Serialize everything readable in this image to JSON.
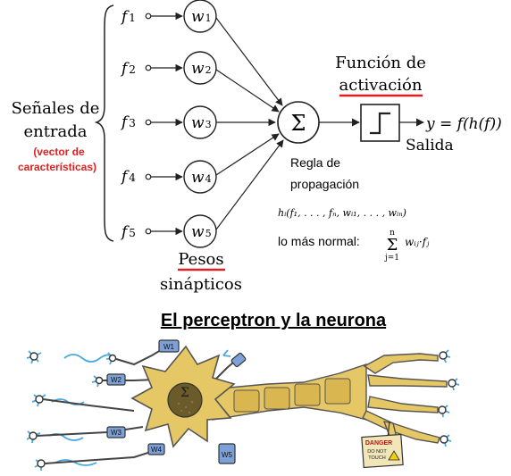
{
  "diagram": {
    "inputs": [
      {
        "label": "f",
        "sub": "1",
        "weight": "w",
        "weight_sub": "1"
      },
      {
        "label": "f",
        "sub": "2",
        "weight": "w",
        "weight_sub": "2"
      },
      {
        "label": "f",
        "sub": "3",
        "weight": "w",
        "weight_sub": "3"
      },
      {
        "label": "f",
        "sub": "4",
        "weight": "w",
        "weight_sub": "4"
      },
      {
        "label": "f",
        "sub": "5",
        "weight": "w",
        "weight_sub": "5"
      }
    ],
    "signals_label_line1": "Señales de",
    "signals_label_line2": "entrada",
    "feature_vector_line1": "(vector de",
    "feature_vector_line2": "características)",
    "sum_symbol": "Σ",
    "activation_label_line1": "Función de",
    "activation_label_line2": "activación",
    "output_formula": "y = f(h(f))",
    "output_label": "Salida",
    "propagation_line1": "Regla de",
    "propagation_line2": "propagación",
    "propagation_formula": "hᵢ(f₁, . . . , fₙ, wᵢ₁, . . . , wᵢₙ)",
    "normal_label": "lo más normal:",
    "normal_formula_sum": "Σ",
    "normal_formula_top": "n",
    "normal_formula_bottom": "j=1",
    "normal_formula_term": "wᵢⱼ·fⱼ",
    "weights_label_line1": "Pesos",
    "weights_label_line2": "sinápticos"
  },
  "neuron": {
    "title": "El perceptron y la neurona",
    "body_symbol": "Σ",
    "danger_line1": "DANGER",
    "danger_line2": "DO NOT",
    "danger_line3": "TOUCH",
    "weight_tags": [
      "W1",
      "W2",
      "W3",
      "W4",
      "W5"
    ]
  },
  "colors": {
    "accent_red": "#e02020",
    "neuron_fill": "#e6c765",
    "neuron_stroke": "#555555",
    "nucleus": "#6b5a2a",
    "spark": "#4aa8e0"
  }
}
